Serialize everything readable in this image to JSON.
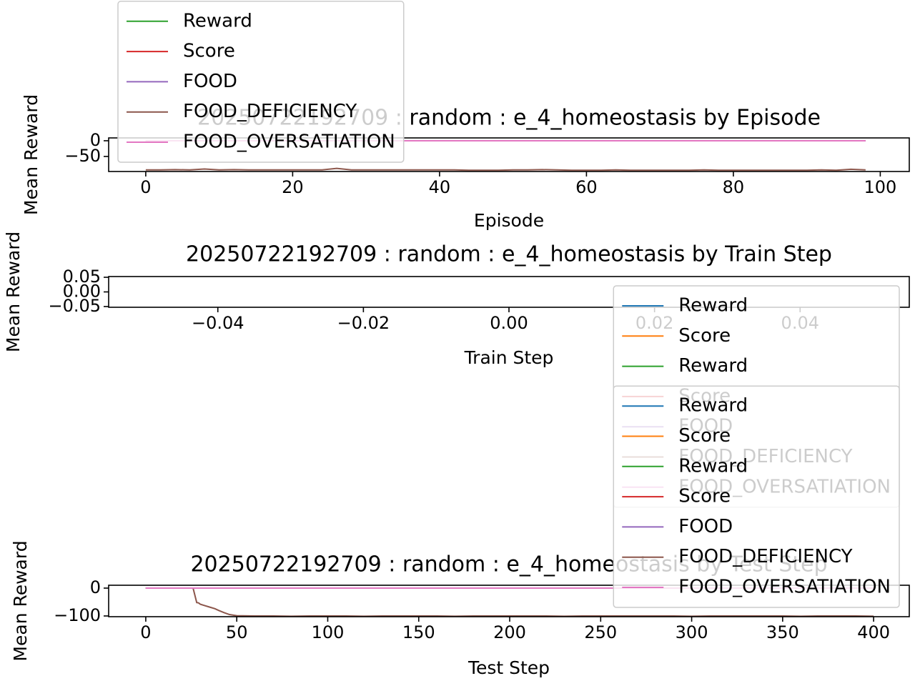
{
  "chart_data": [
    {
      "type": "line",
      "title": "20250722192709 : random : e_4_homeostasis by Episode",
      "xlabel": "Episode",
      "ylabel": "Mean Reward",
      "xlim": [
        -5.05,
        103.95
      ],
      "xticks": [
        0,
        20,
        40,
        60,
        80,
        100
      ],
      "ylim": [
        -98,
        9
      ],
      "yticks": [
        0,
        {
          "value": -50,
          "label": "−50"
        }
      ],
      "legend": "lower left",
      "x": [
        0,
        2,
        4,
        6,
        8,
        10,
        12,
        14,
        16,
        18,
        20,
        22,
        24,
        26,
        28,
        30,
        32,
        34,
        36,
        38,
        40,
        42,
        44,
        46,
        48,
        50,
        52,
        54,
        56,
        58,
        60,
        62,
        64,
        66,
        68,
        70,
        72,
        74,
        76,
        78,
        80,
        82,
        84,
        86,
        88,
        90,
        92,
        94,
        96,
        98
      ],
      "series": [
        {
          "name": "Reward",
          "color": "#2ca02c",
          "values": [
            0,
            0,
            0,
            0,
            0,
            0,
            0,
            0,
            0,
            0,
            0,
            0,
            0,
            0,
            0,
            0,
            0,
            0,
            0,
            0,
            0,
            0,
            0,
            0,
            0,
            0,
            0,
            0,
            0,
            0,
            0,
            0,
            0,
            0,
            0,
            0,
            0,
            0,
            0,
            0,
            0,
            0,
            0,
            0,
            0,
            0,
            0,
            0,
            0,
            0
          ]
        },
        {
          "name": "Score",
          "color": "#d62728",
          "values": [
            0,
            0,
            0,
            0,
            0,
            0,
            0,
            0,
            0,
            0,
            0,
            0,
            0,
            0,
            0,
            0,
            0,
            0,
            0,
            0,
            0,
            0,
            0,
            0,
            0,
            0,
            0,
            0,
            0,
            0,
            0,
            0,
            0,
            0,
            0,
            0,
            0,
            0,
            0,
            0,
            0,
            0,
            0,
            0,
            0,
            0,
            0,
            0,
            0,
            0
          ]
        },
        {
          "name": "FOOD",
          "color": "#9467bd",
          "values": [
            0,
            0,
            0,
            0,
            0,
            0,
            0,
            0,
            0,
            0,
            0,
            0,
            0,
            0,
            0,
            0,
            0,
            0,
            0,
            0,
            0,
            0,
            0,
            0,
            0,
            0,
            0,
            0,
            0,
            0,
            0,
            0,
            0,
            0,
            0,
            0,
            0,
            0,
            0,
            0,
            0,
            0,
            0,
            0,
            0,
            0,
            0,
            0,
            0,
            0
          ]
        },
        {
          "name": "FOOD_DEFICIENCY",
          "color": "#8c564b",
          "values": [
            -93,
            -93,
            -92,
            -93,
            -90,
            -93,
            -92,
            -93,
            -93,
            -93,
            -93,
            -93,
            -93,
            -88,
            -93,
            -93,
            -93,
            -93,
            -93,
            -93,
            -93,
            -93,
            -94,
            -94,
            -94,
            -93,
            -93,
            -92,
            -93,
            -94,
            -94,
            -94,
            -93,
            -94,
            -94,
            -94,
            -94,
            -94,
            -93,
            -94,
            -94,
            -94,
            -94,
            -94,
            -94,
            -94,
            -93,
            -94,
            -91,
            -93
          ]
        },
        {
          "name": "FOOD_OVERSATIATION",
          "color": "#e377c2",
          "values": [
            0,
            0,
            0,
            0,
            0,
            0,
            0,
            0,
            0,
            0,
            0,
            0,
            0,
            0,
            0,
            0,
            0,
            0,
            0,
            0,
            0,
            0,
            0,
            0,
            0,
            0,
            0,
            0,
            0,
            0,
            0,
            0,
            0,
            0,
            0,
            0,
            0,
            0,
            0,
            0,
            0,
            0,
            0,
            0,
            0,
            0,
            0,
            0,
            0,
            0
          ]
        }
      ]
    },
    {
      "type": "line",
      "title": "20250722192709 : random : e_4_homeostasis by Train Step",
      "xlabel": "Train Step",
      "ylabel": "Mean Reward",
      "xlim": [
        -0.055,
        0.055
      ],
      "xticks": [
        {
          "value": -0.04,
          "label": "−0.04"
        },
        {
          "value": -0.02,
          "label": "−0.02"
        },
        {
          "value": 0,
          "label": "0.00"
        },
        {
          "value": 0.02,
          "label": "0.02"
        },
        {
          "value": 0.04,
          "label": "0.04"
        }
      ],
      "ylim": [
        -0.0525,
        0.0525
      ],
      "yticks": [
        {
          "value": 0.05,
          "label": "0.05"
        },
        {
          "value": 0,
          "label": "0.00"
        },
        {
          "value": -0.05,
          "label": "−0.05"
        }
      ],
      "legend": "upper right",
      "x": [],
      "series": [
        {
          "name": "Reward",
          "color": "#1f77b4",
          "values": []
        },
        {
          "name": "Score",
          "color": "#ff7f0e",
          "values": []
        },
        {
          "name": "Reward",
          "color": "#2ca02c",
          "values": []
        },
        {
          "name": "Score",
          "color": "#d62728",
          "values": []
        },
        {
          "name": "FOOD",
          "color": "#9467bd",
          "values": []
        },
        {
          "name": "FOOD_DEFICIENCY",
          "color": "#8c564b",
          "values": []
        },
        {
          "name": "FOOD_OVERSATIATION",
          "color": "#e377c2",
          "values": []
        }
      ]
    },
    {
      "type": "line",
      "title": "20250722192709 : random : e_4_homeostasis by Test Step",
      "xlabel": "Test Step",
      "ylabel": "Mean Reward",
      "xlim": [
        -20.4,
        419.6
      ],
      "xticks": [
        0,
        50,
        100,
        150,
        200,
        250,
        300,
        350,
        400
      ],
      "ylim": [
        -102.6,
        10.3
      ],
      "yticks": [
        0,
        {
          "value": -100,
          "label": "−100"
        }
      ],
      "legend": "lower right",
      "x": [
        0,
        10,
        20,
        26,
        28,
        29,
        30,
        32,
        35,
        38,
        40,
        43,
        46,
        50,
        60,
        70,
        80,
        90,
        100,
        110,
        120,
        130,
        140,
        150,
        160,
        170,
        180,
        190,
        200,
        210,
        220,
        230,
        240,
        250,
        260,
        270,
        280,
        290,
        300,
        310,
        320,
        330,
        340,
        350,
        360,
        370,
        380,
        390,
        400
      ],
      "series": [
        {
          "name": "Reward",
          "color": "#1f77b4",
          "values": [
            0,
            0,
            0,
            0,
            0,
            0,
            0,
            0,
            0,
            0,
            0,
            0,
            0,
            0,
            0,
            0,
            0,
            0,
            0,
            0,
            0,
            0,
            0,
            0,
            0,
            0,
            0,
            0,
            0,
            0,
            0,
            0,
            0,
            0,
            0,
            0,
            0,
            0,
            0,
            0,
            0,
            0,
            0,
            0,
            0,
            0,
            0,
            0,
            0
          ]
        },
        {
          "name": "Score",
          "color": "#ff7f0e",
          "values": [
            0,
            0,
            0,
            0,
            0,
            0,
            0,
            0,
            0,
            0,
            0,
            0,
            0,
            0,
            0,
            0,
            0,
            0,
            0,
            0,
            0,
            0,
            0,
            0,
            0,
            0,
            0,
            0,
            0,
            0,
            0,
            0,
            0,
            0,
            0,
            0,
            0,
            0,
            0,
            0,
            0,
            0,
            0,
            0,
            0,
            0,
            0,
            0,
            0
          ]
        },
        {
          "name": "Reward",
          "color": "#2ca02c",
          "values": [
            0,
            0,
            0,
            0,
            0,
            0,
            0,
            0,
            0,
            0,
            0,
            0,
            0,
            0,
            0,
            0,
            0,
            0,
            0,
            0,
            0,
            0,
            0,
            0,
            0,
            0,
            0,
            0,
            0,
            0,
            0,
            0,
            0,
            0,
            0,
            0,
            0,
            0,
            0,
            0,
            0,
            0,
            0,
            0,
            0,
            0,
            0,
            0,
            0
          ]
        },
        {
          "name": "Score",
          "color": "#d62728",
          "values": [
            0,
            0,
            0,
            0,
            0,
            0,
            0,
            0,
            0,
            0,
            0,
            0,
            0,
            0,
            0,
            0,
            0,
            0,
            0,
            0,
            0,
            0,
            0,
            0,
            0,
            0,
            0,
            0,
            0,
            0,
            0,
            0,
            0,
            0,
            0,
            0,
            0,
            0,
            0,
            0,
            0,
            0,
            0,
            0,
            0,
            0,
            0,
            0,
            0
          ]
        },
        {
          "name": "FOOD",
          "color": "#9467bd",
          "values": [
            0,
            0,
            0,
            0,
            0,
            0,
            0,
            0,
            0,
            0,
            0,
            0,
            0,
            0,
            0,
            0,
            0,
            0,
            0,
            0,
            0,
            0,
            0,
            0,
            0,
            0,
            0,
            0,
            0,
            0,
            0,
            0,
            0,
            0,
            0,
            0,
            0,
            0,
            0,
            0,
            0,
            0,
            0,
            0,
            0,
            0,
            0,
            0,
            0
          ]
        },
        {
          "name": "FOOD_DEFICIENCY",
          "color": "#8c564b",
          "values": [
            0,
            0,
            0,
            0,
            -52,
            -53,
            -58,
            -62,
            -68,
            -74,
            -80,
            -88,
            -95,
            -99,
            -100,
            -100,
            -101,
            -100,
            -100,
            -100,
            -101,
            -100,
            -100,
            -100,
            -100,
            -101,
            -100,
            -100,
            -100,
            -100,
            -100,
            -101,
            -100,
            -100,
            -100,
            -100,
            -100,
            -100,
            -101,
            -100,
            -100,
            -100,
            -100,
            -100,
            -101,
            -100,
            -100,
            -100,
            -101
          ]
        },
        {
          "name": "FOOD_OVERSATIATION",
          "color": "#e377c2",
          "values": [
            0,
            0,
            0,
            0,
            0,
            0,
            0,
            0,
            0,
            0,
            0,
            0,
            0,
            0,
            0,
            0,
            0,
            0,
            0,
            0,
            0,
            0,
            0,
            0,
            0,
            0,
            0,
            0,
            0,
            0,
            0,
            0,
            0,
            0,
            0,
            0,
            0,
            0,
            0,
            0,
            0,
            0,
            0,
            0,
            0,
            0,
            0,
            0,
            0
          ]
        }
      ]
    }
  ]
}
